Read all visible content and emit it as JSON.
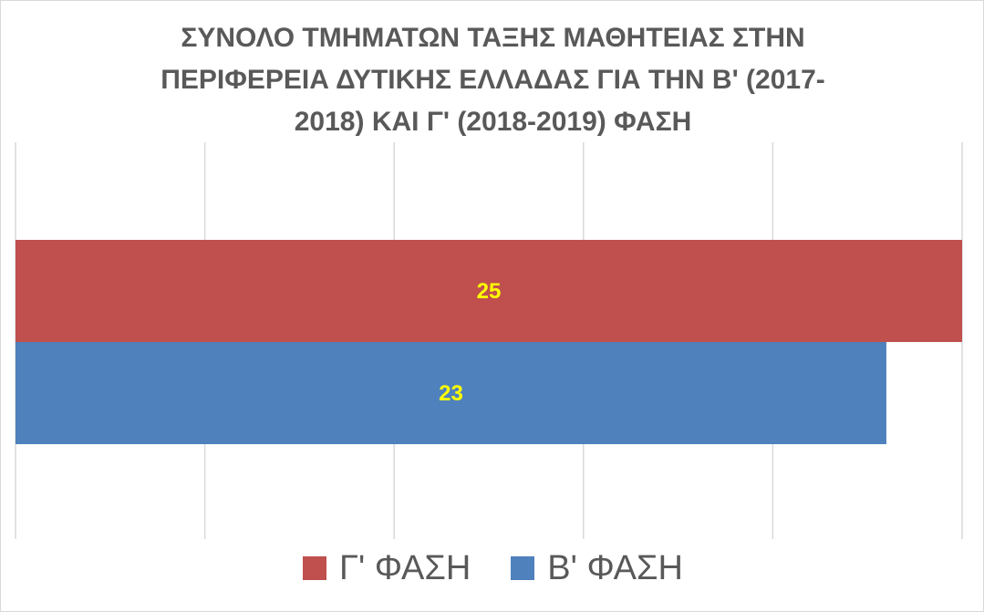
{
  "chart_data": {
    "type": "bar",
    "orientation": "horizontal",
    "title_lines": [
      "ΣΥΝΟΛΟ ΤΜΗΜΑΤΩΝ ΤΑΞΗΣ ΜΑΘΗΤΕΙΑΣ ΣΤΗΝ",
      "ΠΕΡΙΦΕΡΕΙΑ ΔΥΤΙΚΗΣ ΕΛΛΑΔΑΣ ΓΙΑ ΤΗΝ Β' (2017-",
      "2018) ΚΑΙ Γ' (2018-2019) ΦΑΣΗ"
    ],
    "xlim": [
      0,
      25
    ],
    "grid": true,
    "legend_position": "bottom",
    "series": [
      {
        "name": "Γ' ΦΑΣΗ",
        "value": 25,
        "color": "#c0504d",
        "label_color": "#ffff00"
      },
      {
        "name": "Β' ΦΑΣΗ",
        "value": 23,
        "color": "#4f81bd",
        "label_color": "#ffff00"
      }
    ]
  }
}
